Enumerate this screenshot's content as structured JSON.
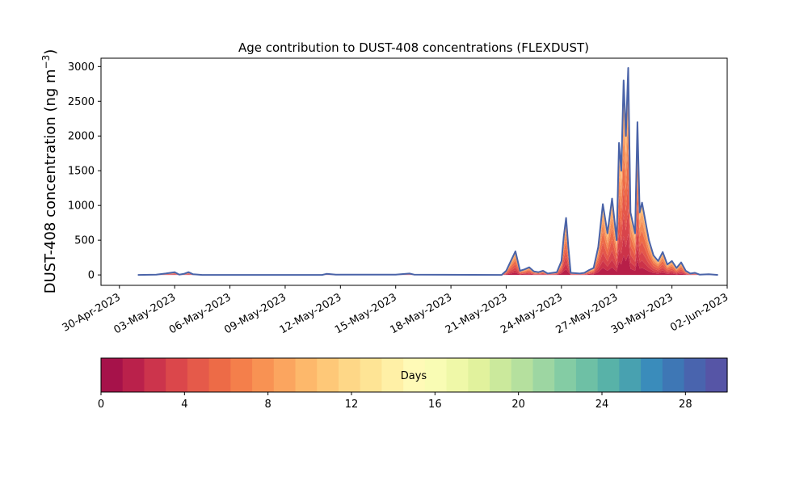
{
  "chart_data": {
    "type": "area",
    "title": "Age contribution to DUST-408 concentrations (FLEXDUST)",
    "ylabel_main": "DUST-408 concentration (ng m",
    "ylabel_sup": "−3",
    "ylabel_close": ")",
    "xlabel": "",
    "ylim": [
      -150,
      3120
    ],
    "yticks": [
      0,
      500,
      1000,
      1500,
      2000,
      2500,
      3000
    ],
    "x_start": "2023-04-29",
    "x_end": "2023-06-02",
    "xticks": [
      "30-Apr-2023",
      "03-May-2023",
      "06-May-2023",
      "09-May-2023",
      "12-May-2023",
      "15-May-2023",
      "18-May-2023",
      "21-May-2023",
      "24-May-2023",
      "27-May-2023",
      "30-May-2023",
      "02-Jun-2023"
    ],
    "grid": false,
    "line_color": "#4a63a8",
    "total_series": {
      "name": "total",
      "points": [
        [
          "2023-05-01",
          0
        ],
        [
          "2023-05-02",
          5
        ],
        [
          "2023-05-02T12",
          20
        ],
        [
          "2023-05-03",
          40
        ],
        [
          "2023-05-03T06",
          5
        ],
        [
          "2023-05-03T12",
          15
        ],
        [
          "2023-05-03T18",
          40
        ],
        [
          "2023-05-04",
          10
        ],
        [
          "2023-05-04T12",
          0
        ],
        [
          "2023-05-11",
          0
        ],
        [
          "2023-05-11T06",
          15
        ],
        [
          "2023-05-11T18",
          5
        ],
        [
          "2023-05-15",
          5
        ],
        [
          "2023-05-15T18",
          20
        ],
        [
          "2023-05-16",
          5
        ],
        [
          "2023-05-20T18",
          0
        ],
        [
          "2023-05-21",
          60
        ],
        [
          "2023-05-21T06",
          200
        ],
        [
          "2023-05-21T12",
          340
        ],
        [
          "2023-05-21T18",
          60
        ],
        [
          "2023-05-22",
          80
        ],
        [
          "2023-05-22T06",
          110
        ],
        [
          "2023-05-22T12",
          50
        ],
        [
          "2023-05-22T18",
          40
        ],
        [
          "2023-05-23",
          60
        ],
        [
          "2023-05-23T06",
          20
        ],
        [
          "2023-05-23T18",
          40
        ],
        [
          "2023-05-24",
          200
        ],
        [
          "2023-05-24T03",
          550
        ],
        [
          "2023-05-24T06",
          820
        ],
        [
          "2023-05-24T09",
          400
        ],
        [
          "2023-05-24T12",
          30
        ],
        [
          "2023-05-25",
          20
        ],
        [
          "2023-05-25T06",
          30
        ],
        [
          "2023-05-25T12",
          70
        ],
        [
          "2023-05-25T18",
          100
        ],
        [
          "2023-05-26",
          400
        ],
        [
          "2023-05-26T06",
          1020
        ],
        [
          "2023-05-26T12",
          600
        ],
        [
          "2023-05-26T18",
          1100
        ],
        [
          "2023-05-27",
          500
        ],
        [
          "2023-05-27T03",
          1900
        ],
        [
          "2023-05-27T06",
          1500
        ],
        [
          "2023-05-27T09",
          2800
        ],
        [
          "2023-05-27T12",
          2000
        ],
        [
          "2023-05-27T15",
          2980
        ],
        [
          "2023-05-27T18",
          900
        ],
        [
          "2023-05-28",
          600
        ],
        [
          "2023-05-28T03",
          2200
        ],
        [
          "2023-05-28T06",
          900
        ],
        [
          "2023-05-28T09",
          1040
        ],
        [
          "2023-05-28T18",
          500
        ],
        [
          "2023-05-29",
          280
        ],
        [
          "2023-05-29T06",
          200
        ],
        [
          "2023-05-29T12",
          330
        ],
        [
          "2023-05-29T18",
          150
        ],
        [
          "2023-05-30",
          200
        ],
        [
          "2023-05-30T06",
          100
        ],
        [
          "2023-05-30T12",
          180
        ],
        [
          "2023-05-30T18",
          60
        ],
        [
          "2023-05-31",
          20
        ],
        [
          "2023-05-31T06",
          30
        ],
        [
          "2023-05-31T12",
          5
        ],
        [
          "2023-06-01",
          10
        ],
        [
          "2023-06-01T12",
          0
        ]
      ]
    },
    "age_layers": [
      {
        "color": "#b71f48",
        "fraction": 0.1
      },
      {
        "color": "#cc3349",
        "fraction": 0.1
      },
      {
        "color": "#d8444b",
        "fraction": 0.12
      },
      {
        "color": "#e4574a",
        "fraction": 0.14
      },
      {
        "color": "#ed6b48",
        "fraction": 0.15
      },
      {
        "color": "#f38a56",
        "fraction": 0.14
      },
      {
        "color": "#f9a66a",
        "fraction": 0.13
      },
      {
        "color": "#fdc07a",
        "fraction": 0.12
      }
    ],
    "colorbar": {
      "label": "Days",
      "range": [
        0,
        30
      ],
      "ticks": [
        "0",
        "4",
        "8",
        "12",
        "16",
        "20",
        "24",
        "28"
      ],
      "colors": [
        "#a6124a",
        "#ba214b",
        "#cc344c",
        "#db474b",
        "#e55a4a",
        "#ed6b47",
        "#f47f4b",
        "#f89253",
        "#fba55f",
        "#fdb86b",
        "#fec878",
        "#fed787",
        "#fee495",
        "#fff0a6",
        "#fffab7",
        "#f9fcb4",
        "#eff8a8",
        "#e1f29d",
        "#cbe99c",
        "#b5e09e",
        "#9dd6a2",
        "#84cca4",
        "#6ec0a5",
        "#58b2a8",
        "#48a1b0",
        "#3a8cbb",
        "#3e77b5",
        "#4964ae",
        "#5655a6"
      ]
    }
  }
}
